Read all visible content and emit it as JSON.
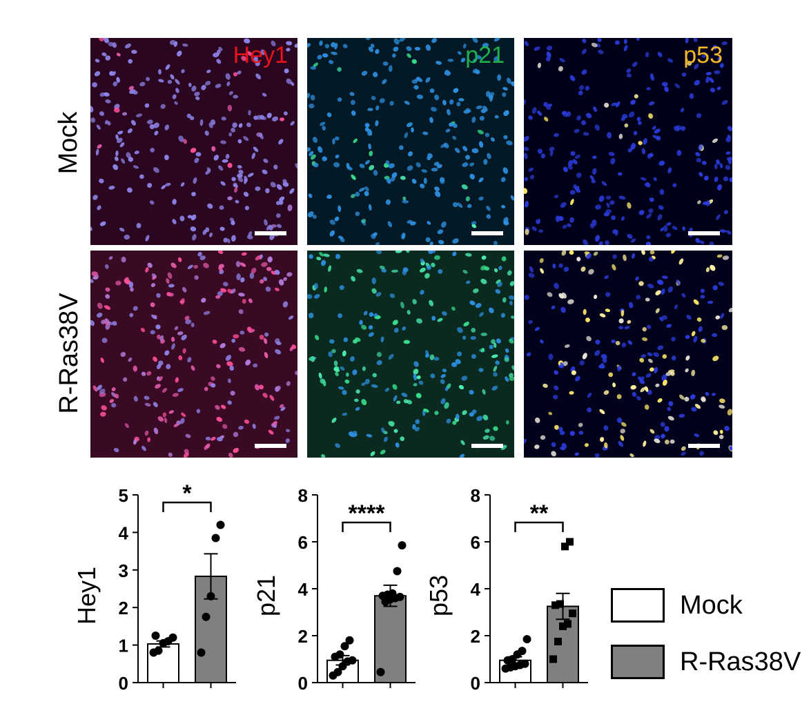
{
  "rows": [
    "Mock",
    "R-Ras38V"
  ],
  "channels": [
    {
      "name": "Hey1",
      "color": "#e8141a"
    },
    {
      "name": "p21",
      "color": "#1fb14b"
    },
    {
      "name": "p53",
      "color": "#f3b82a"
    }
  ],
  "icons": {
    "scale_bar": "scale-bar"
  },
  "legend": {
    "mock": {
      "label": "Mock",
      "fill": "#ffffff"
    },
    "ras": {
      "label": "R-Ras38V",
      "fill": "#808080"
    }
  },
  "chart_data": [
    {
      "type": "bar",
      "ylabel": "Hey1",
      "ylim": [
        0,
        5
      ],
      "yticks": [
        0,
        1,
        2,
        3,
        4,
        5
      ],
      "significance": "*",
      "categories": [
        "Mock",
        "R-Ras38V"
      ],
      "series": [
        {
          "values": [
            1.03,
            2.83
          ],
          "error": [
            0.08,
            0.6
          ]
        }
      ],
      "points": [
        [
          0.8,
          0.85,
          1.05,
          1.1,
          1.2,
          1.25
        ],
        [
          0.8,
          1.75,
          2.3,
          3.85,
          4.2
        ]
      ],
      "marker": "circle"
    },
    {
      "type": "bar",
      "ylabel": "p21",
      "ylim": [
        0,
        8
      ],
      "yticks": [
        0,
        2,
        4,
        6,
        8
      ],
      "significance": "****",
      "categories": [
        "Mock",
        "R-Ras38V"
      ],
      "series": [
        {
          "values": [
            0.95,
            3.7
          ],
          "error": [
            0.2,
            0.45
          ]
        }
      ],
      "points": [
        [
          0.3,
          0.45,
          0.7,
          0.9,
          0.95,
          1.1,
          1.2,
          1.55,
          1.8
        ],
        [
          0.45,
          3.45,
          3.55,
          3.6,
          3.65,
          3.7,
          3.75,
          3.8,
          4.75,
          5.85
        ]
      ],
      "marker": "circle"
    },
    {
      "type": "bar",
      "ylabel": "p53",
      "ylim": [
        0,
        8
      ],
      "yticks": [
        0,
        2,
        4,
        6,
        8
      ],
      "significance": "**",
      "categories": [
        "Mock",
        "R-Ras38V"
      ],
      "series": [
        {
          "values": [
            0.95,
            3.25
          ],
          "error": [
            0.15,
            0.55
          ]
        }
      ],
      "points": [
        [
          0.6,
          0.65,
          0.7,
          0.75,
          0.8,
          0.95,
          1.0,
          1.2,
          1.35,
          1.85
        ],
        [
          1.0,
          1.75,
          2.4,
          2.5,
          2.95,
          3.3,
          3.35,
          5.8,
          6.0
        ]
      ],
      "marker": "square"
    }
  ]
}
